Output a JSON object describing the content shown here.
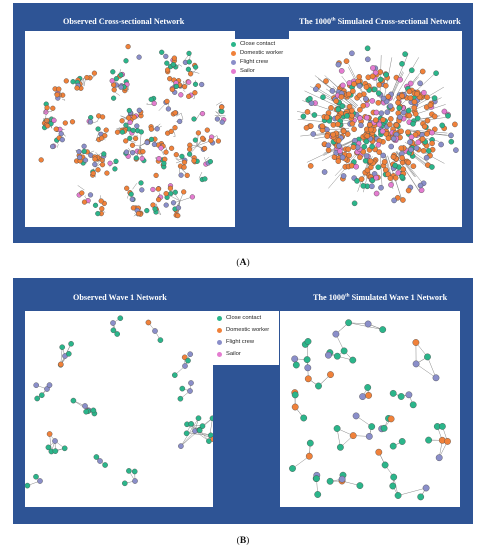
{
  "legend": [
    {
      "label": "Close contact",
      "color": "#2bb58a"
    },
    {
      "label": "Domestic worker",
      "color": "#f0813a"
    },
    {
      "label": "Flight crew",
      "color": "#8a8ec9"
    },
    {
      "label": "Sailor",
      "color": "#e47cd0"
    }
  ],
  "panel_a": {
    "left_title": "Observed Cross-sectional Network",
    "right_title_pre": "The 1000",
    "right_title_sup": "th",
    "right_title_post": " Simulated Cross-sectional Network",
    "caption_open": "(",
    "caption_letter": "A",
    "caption_close": ")"
  },
  "panel_b": {
    "left_title": "Observed Wave 1 Network",
    "right_title_pre": "The 1000",
    "right_title_sup": "th",
    "right_title_post": " Simulated Wave 1 Network",
    "caption_open": "(",
    "caption_letter": "B",
    "caption_close": ")"
  }
}
